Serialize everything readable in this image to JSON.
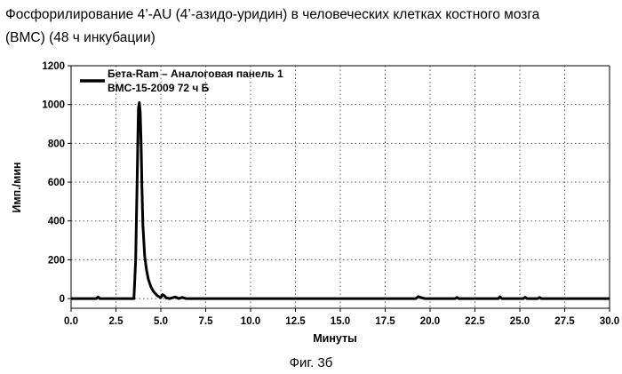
{
  "header": {
    "line1": "Фосфорилирование 4’-AU (4’-азидо-уридин) в человеческих клетках костного мозга",
    "line2": "(BMC) (48 ч инкубации)"
  },
  "caption": "Фиг. 3б",
  "chart_data": {
    "type": "line",
    "title": "",
    "xlabel": "Минуты",
    "ylabel": "Имп./мин",
    "xlim": [
      0,
      30
    ],
    "ylim": [
      -50,
      1200
    ],
    "x_ticks": [
      "0.0",
      "2.5",
      "5.0",
      "7.5",
      "10.0",
      "12.5",
      "15.0",
      "17.5",
      "20.0",
      "22.5",
      "25.0",
      "27.5",
      "30.0"
    ],
    "y_ticks": [
      "0",
      "200",
      "400",
      "600",
      "800",
      "1000",
      "1200"
    ],
    "grid": "dotted",
    "legend_position": "top-left",
    "legend": [
      "Бета-Ram – Аналоговая панель 1",
      "BMC-15-2009 72 ч Б"
    ],
    "series": [
      {
        "name": "Бета-Ram – Аналоговая панель 1",
        "color": "#000000",
        "x": [
          0,
          1.4,
          1.5,
          1.6,
          1.7,
          3.5,
          3.6,
          3.7,
          3.75,
          3.8,
          3.85,
          3.9,
          3.95,
          4.0,
          4.1,
          4.2,
          4.3,
          4.45,
          4.6,
          4.8,
          5.0,
          5.1,
          5.2,
          5.3,
          5.5,
          5.8,
          6.0,
          6.2,
          6.4,
          7.0,
          10.0,
          15.0,
          19.2,
          19.35,
          19.5,
          19.7,
          20.0,
          21.4,
          21.5,
          21.6,
          23.8,
          23.9,
          24.0,
          25.2,
          25.3,
          25.4,
          26.0,
          26.1,
          26.2,
          30.0
        ],
        "y": [
          0,
          0,
          8,
          0,
          0,
          0,
          200,
          700,
          980,
          1010,
          960,
          800,
          560,
          380,
          220,
          150,
          100,
          60,
          35,
          15,
          5,
          20,
          15,
          3,
          0,
          8,
          0,
          6,
          0,
          0,
          0,
          0,
          0,
          10,
          5,
          0,
          0,
          0,
          6,
          0,
          0,
          9,
          0,
          0,
          7,
          0,
          0,
          6,
          0,
          0
        ]
      }
    ]
  }
}
